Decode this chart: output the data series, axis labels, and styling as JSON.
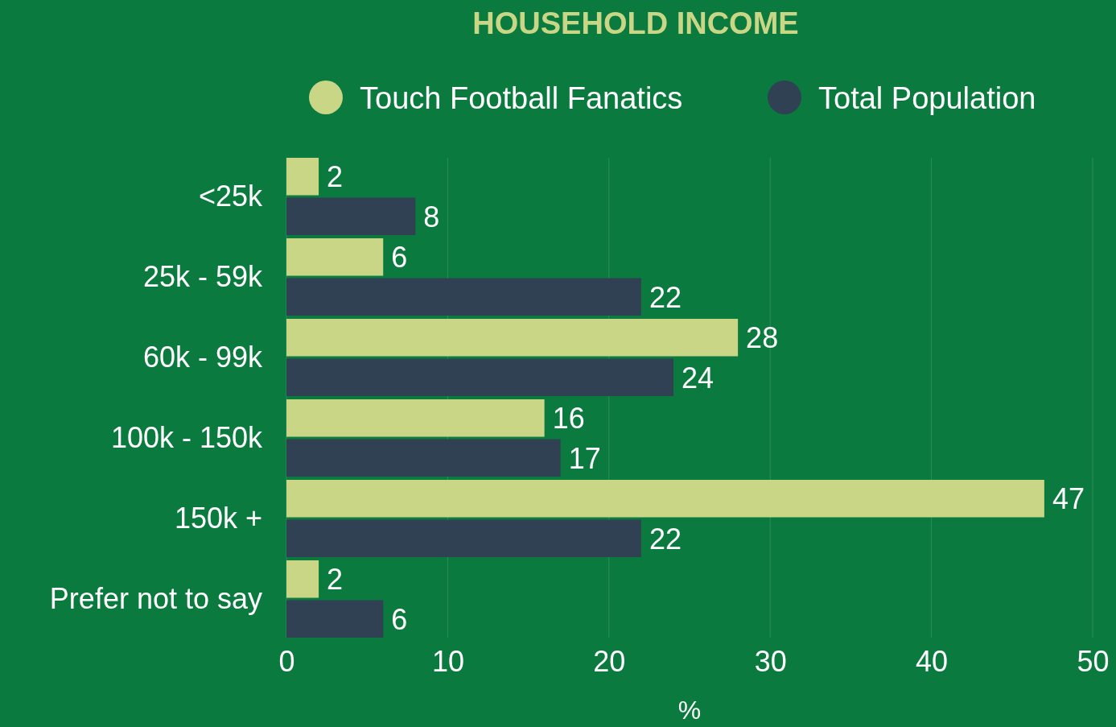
{
  "chart_data": {
    "type": "bar",
    "orientation": "horizontal",
    "title": "HOUSEHOLD INCOME",
    "xlabel": "%",
    "categories": [
      "<25k",
      "25k - 59k",
      "60k - 99k",
      "100k - 150k",
      "150k +",
      "Prefer not to say"
    ],
    "series": [
      {
        "name": "Touch Football Fanatics",
        "color": "#c8d685",
        "values": [
          2,
          6,
          28,
          16,
          47,
          2
        ]
      },
      {
        "name": "Total Population",
        "color": "#2f4152",
        "values": [
          8,
          22,
          24,
          17,
          22,
          6
        ]
      }
    ],
    "xlim": [
      0,
      50
    ],
    "xticks": [
      0,
      10,
      20,
      30,
      40,
      50
    ],
    "grid": "x",
    "legend": "top",
    "data_labels": true
  }
}
